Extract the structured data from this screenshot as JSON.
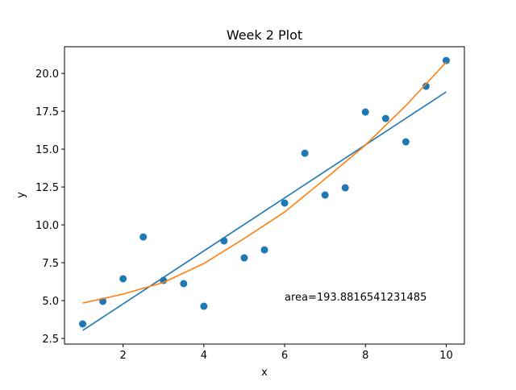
{
  "chart_data": {
    "type": "scatter",
    "title": "Week 2 Plot",
    "x_label": "x",
    "y_label": "y",
    "annotation": "area=193.8816541231485",
    "xlim": [
      0.55,
      10.45
    ],
    "ylim": [
      2.13,
      21.76
    ],
    "xticks": [
      2,
      4,
      6,
      8,
      10
    ],
    "yticks": [
      {
        "value": 2.5,
        "label": "2.5"
      },
      {
        "value": 5,
        "label": "5.0"
      },
      {
        "value": 7.5,
        "label": "7.5"
      },
      {
        "value": 10,
        "label": "10.0"
      },
      {
        "value": 12.5,
        "label": "12.5"
      },
      {
        "value": 15,
        "label": "15.0"
      },
      {
        "value": 17.5,
        "label": "17.5"
      },
      {
        "value": 20,
        "label": "20.0"
      }
    ],
    "series": [
      {
        "type": "scatter",
        "color": "#1f77b4",
        "x": [
          1,
          1.5,
          2,
          2.5,
          3,
          3.5,
          4,
          4.5,
          5,
          5.5,
          6,
          6.5,
          7,
          7.5,
          8,
          8.5,
          9,
          9.5,
          10
        ],
        "values": [
          3.46,
          4.95,
          6.44,
          9.2,
          6.33,
          6.12,
          4.63,
          8.94,
          7.82,
          8.35,
          11.44,
          14.73,
          11.97,
          12.45,
          17.45,
          17.02,
          15.48,
          19.15,
          20.85
        ]
      },
      {
        "type": "line",
        "color": "#1f77b4",
        "x": [
          1,
          10
        ],
        "values": [
          3.03,
          18.78
        ]
      },
      {
        "type": "line",
        "color": "#ff7f0e",
        "x": [
          1,
          2,
          3,
          4,
          5,
          6,
          7,
          8,
          9,
          10
        ],
        "values": [
          4.84,
          5.43,
          6.2,
          7.45,
          9.1,
          10.85,
          13.03,
          15.27,
          17.87,
          20.74
        ]
      }
    ]
  }
}
